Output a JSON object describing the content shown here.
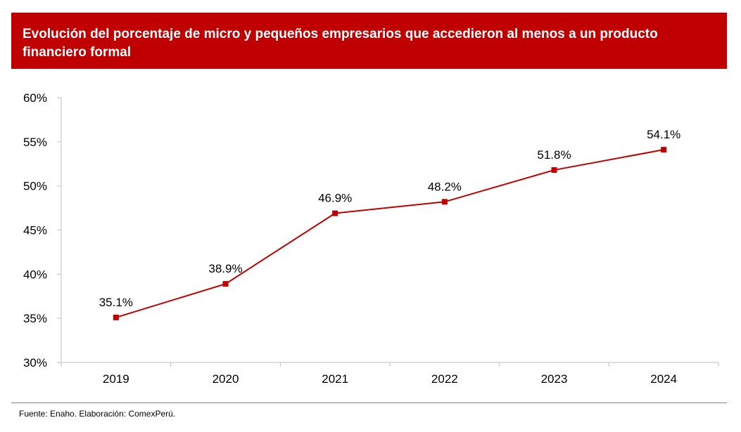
{
  "title": "Evolución del porcentaje de micro y pequeños empresarios que accedieron al menos a un producto financiero formal",
  "source": "Fuente: Enaho. Elaboración: ComexPerú.",
  "colors": {
    "accent": "#c00000",
    "axis": "#bfbfbf",
    "footer_line": "#e06666"
  },
  "chart_data": {
    "type": "line",
    "title": "Evolución del porcentaje de micro y pequeños empresarios que accedieron al menos a un producto financiero formal",
    "xlabel": "",
    "ylabel": "",
    "categories": [
      "2019",
      "2020",
      "2021",
      "2022",
      "2023",
      "2024"
    ],
    "series": [
      {
        "values": [
          35.1,
          38.9,
          46.9,
          48.2,
          51.8,
          54.1
        ],
        "labels": [
          "35.1%",
          "38.9%",
          "46.9%",
          "48.2%",
          "51.8%",
          "54.1%"
        ],
        "color": "#c00000",
        "marker": "square"
      }
    ],
    "ylim": [
      30,
      60
    ],
    "yticks": [
      30,
      35,
      40,
      45,
      50,
      55,
      60
    ],
    "ytick_labels": [
      "30%",
      "35%",
      "40%",
      "45%",
      "50%",
      "55%",
      "60%"
    ],
    "grid": false,
    "legend": "none"
  }
}
